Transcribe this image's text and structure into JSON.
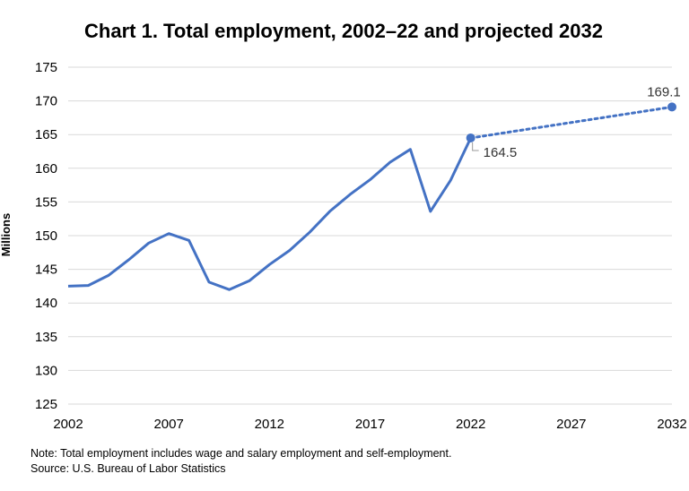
{
  "chart_data": {
    "type": "line",
    "title": "Chart 1. Total employment, 2002–22 and projected 2032",
    "ylabel": "Millions",
    "xlabel": "",
    "ylim": [
      125,
      175
    ],
    "xlim": [
      2002,
      2032
    ],
    "yticks": [
      "125",
      "130",
      "135",
      "140",
      "145",
      "150",
      "155",
      "160",
      "165",
      "170",
      "175"
    ],
    "xticks": [
      "2002",
      "2007",
      "2012",
      "2017",
      "2022",
      "2027",
      "2032"
    ],
    "grid": true,
    "color": "#4472c4",
    "series": [
      {
        "style": "solid",
        "x": [
          2002,
          2003,
          2004,
          2005,
          2006,
          2007,
          2008,
          2009,
          2010,
          2011,
          2012,
          2013,
          2014,
          2015,
          2016,
          2017,
          2018,
          2019,
          2020,
          2021,
          2022
        ],
        "y": [
          142.5,
          142.6,
          144.1,
          146.4,
          148.9,
          150.3,
          149.3,
          143.1,
          142.0,
          143.3,
          145.7,
          147.8,
          150.5,
          153.6,
          156.1,
          158.3,
          160.9,
          162.8,
          153.6,
          158.2,
          164.5
        ]
      },
      {
        "style": "dotted",
        "x": [
          2022,
          2032
        ],
        "y": [
          164.5,
          169.1
        ]
      }
    ],
    "annotations": [
      {
        "x": 2022,
        "y": 164.5,
        "text": "164.5"
      },
      {
        "x": 2032,
        "y": 169.1,
        "text": "169.1"
      }
    ]
  },
  "footer": {
    "note": "Note: Total employment includes wage and salary employment and self-employment.",
    "source": "Source: U.S. Bureau of Labor Statistics"
  }
}
